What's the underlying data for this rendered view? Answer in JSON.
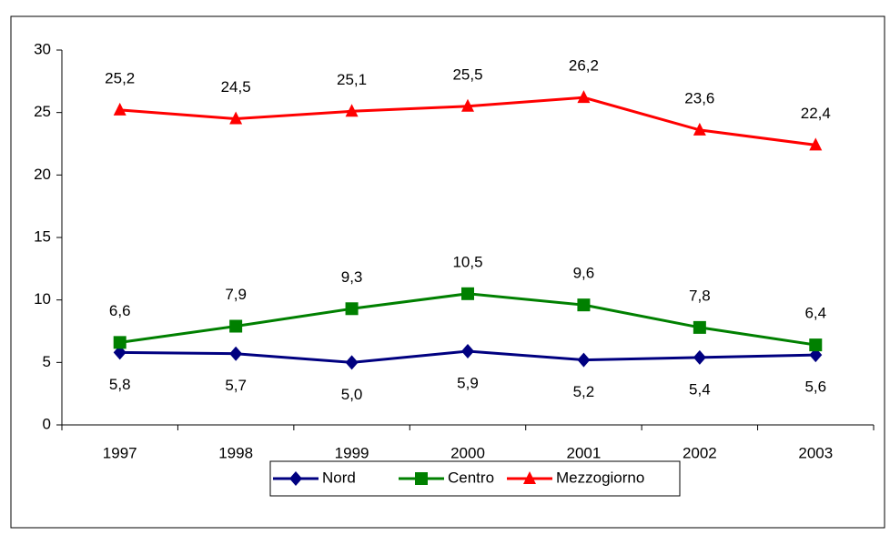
{
  "chart_data": {
    "type": "line",
    "categories": [
      "1997",
      "1998",
      "1999",
      "2000",
      "2001",
      "2002",
      "2003"
    ],
    "series": [
      {
        "name": "Nord",
        "color": "#000080",
        "marker": "diamond",
        "values": [
          5.8,
          5.7,
          5.0,
          5.9,
          5.2,
          5.4,
          5.6
        ],
        "value_labels": [
          "5,8",
          "5,7",
          "5,0",
          "5,9",
          "5,2",
          "5,4",
          "5,6"
        ]
      },
      {
        "name": "Centro",
        "color": "#008000",
        "marker": "square",
        "values": [
          6.6,
          7.9,
          9.3,
          10.5,
          9.6,
          7.8,
          6.4
        ],
        "value_labels": [
          "6,6",
          "7,9",
          "9,3",
          "10,5",
          "9,6",
          "7,8",
          "6,4"
        ]
      },
      {
        "name": "Mezzogiorno",
        "color": "#ff0000",
        "marker": "triangle",
        "values": [
          25.2,
          24.5,
          25.1,
          25.5,
          26.2,
          23.6,
          22.4
        ],
        "value_labels": [
          "25,2",
          "24,5",
          "25,1",
          "25,5",
          "26,2",
          "23,6",
          "22,4"
        ]
      }
    ],
    "ylim": [
      0,
      30
    ],
    "yticks": [
      0,
      5,
      10,
      15,
      20,
      25,
      30
    ],
    "grid": false,
    "legend": "bottom"
  }
}
